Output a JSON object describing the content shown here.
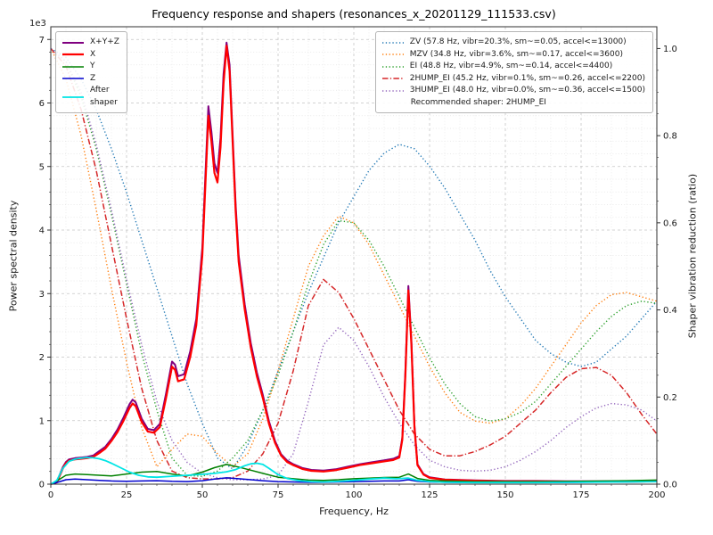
{
  "chart_data": {
    "type": "line",
    "title": "Frequency response and shapers (resonances_x_20201129_111533.csv)",
    "xlabel": "Frequency, Hz",
    "ylabel_left": "Power spectral density",
    "ylabel_right": "Shaper vibration reduction (ratio)",
    "y_left_offset_label": "1e3",
    "xlim": [
      0,
      200
    ],
    "ylim_left": [
      0,
      7200
    ],
    "ylim_right": [
      0,
      1.05
    ],
    "xticks": [
      0,
      25,
      50,
      75,
      100,
      125,
      150,
      175,
      200
    ],
    "yticks_left": [
      0,
      1,
      2,
      3,
      4,
      5,
      6,
      7
    ],
    "yticks_left_scale": 1000,
    "yticks_right": [
      0.0,
      0.2,
      0.4,
      0.6,
      0.8,
      1.0
    ],
    "x_minor_step": 5,
    "y_left_minor_step": 200,
    "y_right_minor_step": 0.05,
    "grid": "both",
    "legend_left_position": "upper left",
    "legend_right_position": "upper right",
    "recommended_note": "Recommended shaper: 2HUMP_EI",
    "psd_series": [
      {
        "id": "xyz",
        "name": "X+Y+Z",
        "color": "#800080",
        "dash": "solid",
        "lw": 2.0,
        "x": [
          0,
          2,
          4,
          5,
          6,
          8,
          10,
          12,
          14,
          16,
          18,
          20,
          22,
          24,
          26,
          27,
          28,
          30,
          32,
          34,
          36,
          38,
          40,
          41,
          42,
          44,
          46,
          48,
          50,
          51,
          52,
          53,
          54,
          55,
          56,
          57,
          58,
          59,
          60,
          61,
          62,
          64,
          66,
          68,
          70,
          72,
          74,
          76,
          78,
          80,
          83,
          86,
          90,
          94,
          98,
          102,
          106,
          110,
          113,
          115,
          116,
          117,
          118,
          119,
          120,
          121,
          123,
          125,
          130,
          140,
          150,
          160,
          170,
          180,
          190,
          200
        ],
        "y": [
          0,
          40,
          270,
          350,
          390,
          410,
          420,
          430,
          450,
          520,
          590,
          710,
          860,
          1050,
          1260,
          1330,
          1290,
          1030,
          870,
          850,
          950,
          1420,
          1930,
          1880,
          1700,
          1730,
          2090,
          2600,
          3720,
          4850,
          5950,
          5550,
          5050,
          4900,
          5450,
          6450,
          6950,
          6600,
          5500,
          4400,
          3600,
          2830,
          2220,
          1760,
          1400,
          990,
          680,
          470,
          370,
          315,
          255,
          225,
          215,
          235,
          275,
          315,
          345,
          375,
          400,
          440,
          730,
          1760,
          3120,
          2260,
          930,
          315,
          160,
          110,
          75,
          60,
          50,
          50,
          45,
          45,
          45,
          50
        ]
      },
      {
        "id": "x",
        "name": "X",
        "color": "#ff0000",
        "dash": "solid",
        "lw": 2.2,
        "x": [
          0,
          2,
          4,
          5,
          6,
          8,
          10,
          12,
          14,
          16,
          18,
          20,
          22,
          24,
          26,
          27,
          28,
          30,
          32,
          34,
          36,
          38,
          40,
          41,
          42,
          44,
          46,
          48,
          50,
          51,
          52,
          53,
          54,
          55,
          56,
          57,
          58,
          59,
          60,
          61,
          62,
          64,
          66,
          68,
          70,
          72,
          74,
          76,
          78,
          80,
          83,
          86,
          90,
          94,
          98,
          102,
          106,
          110,
          113,
          115,
          116,
          117,
          118,
          119,
          120,
          121,
          123,
          125,
          130,
          140,
          150,
          160,
          170,
          180,
          190,
          200
        ],
        "y": [
          0,
          30,
          250,
          330,
          370,
          390,
          400,
          410,
          430,
          490,
          560,
          680,
          820,
          1000,
          1200,
          1270,
          1230,
          980,
          830,
          810,
          900,
          1350,
          1850,
          1800,
          1620,
          1650,
          2000,
          2500,
          3600,
          4700,
          5800,
          5400,
          4900,
          4750,
          5300,
          6300,
          6900,
          6500,
          5400,
          4300,
          3500,
          2750,
          2150,
          1700,
          1350,
          950,
          650,
          450,
          350,
          300,
          240,
          210,
          200,
          220,
          260,
          300,
          330,
          360,
          380,
          420,
          700,
          1700,
          3050,
          2200,
          900,
          300,
          150,
          100,
          70,
          55,
          45,
          45,
          40,
          40,
          40,
          45
        ]
      },
      {
        "id": "y",
        "name": "Y",
        "color": "#008000",
        "dash": "solid",
        "lw": 1.5,
        "x": [
          0,
          3,
          5,
          8,
          12,
          16,
          20,
          25,
          30,
          35,
          40,
          45,
          50,
          54,
          58,
          62,
          66,
          70,
          75,
          80,
          85,
          90,
          95,
          100,
          105,
          110,
          115,
          118,
          121,
          125,
          130,
          140,
          150,
          160,
          175,
          190,
          200
        ],
        "y": [
          0,
          80,
          140,
          160,
          150,
          140,
          130,
          160,
          190,
          200,
          160,
          130,
          190,
          260,
          310,
          270,
          220,
          170,
          110,
          85,
          65,
          60,
          70,
          85,
          95,
          105,
          110,
          160,
          90,
          60,
          50,
          40,
          40,
          40,
          45,
          55,
          65
        ]
      },
      {
        "id": "z",
        "name": "Z",
        "color": "#0000cd",
        "dash": "solid",
        "lw": 1.5,
        "x": [
          0,
          3,
          5,
          8,
          12,
          16,
          20,
          25,
          30,
          35,
          40,
          45,
          50,
          54,
          58,
          62,
          66,
          70,
          75,
          80,
          85,
          90,
          95,
          100,
          105,
          110,
          115,
          118,
          121,
          125,
          130,
          140,
          150,
          160,
          175,
          190,
          200
        ],
        "y": [
          0,
          40,
          70,
          80,
          70,
          60,
          50,
          45,
          50,
          55,
          45,
          40,
          55,
          80,
          100,
          85,
          70,
          55,
          40,
          35,
          30,
          30,
          35,
          40,
          45,
          50,
          50,
          70,
          45,
          35,
          30,
          25,
          25,
          25,
          30,
          35,
          40
        ]
      },
      {
        "id": "after_shaper",
        "name": "After\nshaper",
        "color": "#00e5e5",
        "dash": "solid",
        "lw": 1.8,
        "x": [
          0,
          2,
          4,
          6,
          8,
          10,
          12,
          14,
          16,
          18,
          20,
          23,
          26,
          29,
          32,
          35,
          40,
          45,
          50,
          54,
          58,
          61,
          64,
          66,
          68,
          70,
          72,
          75,
          78,
          82,
          86,
          90,
          95,
          100,
          105,
          110,
          114,
          118,
          121,
          125,
          130,
          140,
          150,
          160,
          175,
          190,
          200
        ],
        "y": [
          0,
          60,
          250,
          360,
          395,
          410,
          420,
          415,
          400,
          370,
          330,
          260,
          190,
          140,
          115,
          110,
          125,
          140,
          155,
          170,
          195,
          230,
          290,
          320,
          330,
          310,
          250,
          150,
          90,
          55,
          40,
          35,
          45,
          60,
          80,
          95,
          85,
          95,
          60,
          40,
          30,
          25,
          25,
          25,
          30,
          35,
          40
        ]
      }
    ],
    "shaper_series": [
      {
        "id": "zv",
        "label": "ZV (57.8 Hz, vibr=20.3%, sm~=0.05, accel<=13000)",
        "color": "#1f77b4",
        "dash": "dotted",
        "lw": 1.4,
        "x": [
          0,
          5,
          10,
          15,
          20,
          25,
          30,
          35,
          40,
          45,
          50,
          55,
          60,
          65,
          70,
          75,
          80,
          85,
          90,
          95,
          100,
          105,
          110,
          115,
          120,
          125,
          130,
          135,
          140,
          145,
          150,
          155,
          160,
          165,
          170,
          175,
          180,
          185,
          190,
          195,
          200
        ],
        "y": [
          1.0,
          0.98,
          0.93,
          0.86,
          0.77,
          0.67,
          0.56,
          0.45,
          0.34,
          0.23,
          0.14,
          0.06,
          0.035,
          0.09,
          0.17,
          0.26,
          0.35,
          0.44,
          0.52,
          0.6,
          0.66,
          0.72,
          0.76,
          0.78,
          0.77,
          0.73,
          0.68,
          0.62,
          0.56,
          0.49,
          0.43,
          0.38,
          0.33,
          0.3,
          0.28,
          0.27,
          0.28,
          0.31,
          0.34,
          0.38,
          0.42
        ]
      },
      {
        "id": "mzv",
        "label": "MZV (34.8 Hz, vibr=3.6%, sm~=0.17, accel<=3600)",
        "color": "#ff7f0e",
        "dash": "dotted",
        "lw": 1.4,
        "x": [
          0,
          5,
          10,
          15,
          20,
          25,
          30,
          35,
          40,
          45,
          50,
          55,
          60,
          65,
          70,
          75,
          80,
          85,
          90,
          95,
          100,
          105,
          110,
          115,
          120,
          125,
          130,
          135,
          140,
          145,
          150,
          155,
          160,
          165,
          170,
          175,
          180,
          185,
          190,
          195,
          200
        ],
        "y": [
          1.0,
          0.93,
          0.8,
          0.63,
          0.45,
          0.28,
          0.13,
          0.04,
          0.08,
          0.115,
          0.11,
          0.07,
          0.04,
          0.07,
          0.15,
          0.26,
          0.38,
          0.5,
          0.57,
          0.615,
          0.6,
          0.55,
          0.48,
          0.41,
          0.34,
          0.27,
          0.21,
          0.165,
          0.145,
          0.14,
          0.15,
          0.18,
          0.22,
          0.27,
          0.32,
          0.37,
          0.41,
          0.435,
          0.44,
          0.43,
          0.42
        ]
      },
      {
        "id": "ei",
        "label": "EI (48.8 Hz, vibr=4.9%, sm~=0.14, accel<=4400)",
        "color": "#2ca02c",
        "dash": "dotted",
        "lw": 1.4,
        "x": [
          0,
          5,
          10,
          15,
          20,
          25,
          30,
          35,
          40,
          45,
          50,
          55,
          60,
          65,
          70,
          75,
          80,
          85,
          90,
          95,
          100,
          105,
          110,
          115,
          120,
          125,
          130,
          135,
          140,
          145,
          150,
          155,
          160,
          165,
          170,
          175,
          180,
          185,
          190,
          195,
          200
        ],
        "y": [
          1.0,
          0.97,
          0.89,
          0.77,
          0.62,
          0.46,
          0.3,
          0.17,
          0.06,
          0.02,
          0.018,
          0.03,
          0.06,
          0.1,
          0.17,
          0.25,
          0.35,
          0.46,
          0.55,
          0.605,
          0.6,
          0.56,
          0.5,
          0.43,
          0.36,
          0.29,
          0.23,
          0.185,
          0.155,
          0.145,
          0.15,
          0.165,
          0.19,
          0.23,
          0.27,
          0.31,
          0.35,
          0.385,
          0.41,
          0.42,
          0.415
        ]
      },
      {
        "id": "2hump_ei",
        "label": "2HUMP_EI (45.2 Hz, vibr=0.1%, sm~=0.26, accel<=2200)",
        "color": "#d62728",
        "dash": "dashdot",
        "lw": 1.5,
        "x": [
          0,
          5,
          10,
          15,
          20,
          25,
          30,
          35,
          40,
          45,
          50,
          55,
          60,
          65,
          70,
          75,
          80,
          85,
          90,
          95,
          100,
          105,
          110,
          115,
          120,
          125,
          130,
          135,
          140,
          145,
          150,
          155,
          160,
          165,
          170,
          175,
          180,
          185,
          190,
          195,
          200
        ],
        "y": [
          1.0,
          0.96,
          0.86,
          0.72,
          0.55,
          0.38,
          0.22,
          0.1,
          0.03,
          0.015,
          0.012,
          0.012,
          0.015,
          0.03,
          0.07,
          0.14,
          0.26,
          0.41,
          0.47,
          0.44,
          0.38,
          0.31,
          0.24,
          0.17,
          0.115,
          0.08,
          0.065,
          0.065,
          0.075,
          0.09,
          0.11,
          0.14,
          0.17,
          0.21,
          0.245,
          0.265,
          0.268,
          0.25,
          0.21,
          0.16,
          0.115
        ]
      },
      {
        "id": "3hump_ei",
        "label": "3HUMP_EI (48.0 Hz, vibr=0.0%, sm~=0.36, accel<=1500)",
        "color": "#9467bd",
        "dash": "dotted",
        "lw": 1.4,
        "x": [
          0,
          5,
          10,
          15,
          20,
          25,
          30,
          35,
          40,
          45,
          50,
          55,
          60,
          65,
          70,
          75,
          80,
          85,
          90,
          95,
          100,
          105,
          110,
          115,
          120,
          125,
          130,
          135,
          140,
          145,
          150,
          155,
          160,
          165,
          170,
          175,
          180,
          185,
          190,
          195,
          200
        ],
        "y": [
          1.0,
          0.97,
          0.9,
          0.78,
          0.63,
          0.47,
          0.32,
          0.19,
          0.1,
          0.05,
          0.025,
          0.015,
          0.01,
          0.01,
          0.012,
          0.02,
          0.07,
          0.19,
          0.32,
          0.36,
          0.33,
          0.27,
          0.2,
          0.14,
          0.09,
          0.055,
          0.04,
          0.032,
          0.03,
          0.032,
          0.04,
          0.055,
          0.075,
          0.1,
          0.13,
          0.155,
          0.175,
          0.185,
          0.182,
          0.17,
          0.145
        ]
      }
    ]
  }
}
